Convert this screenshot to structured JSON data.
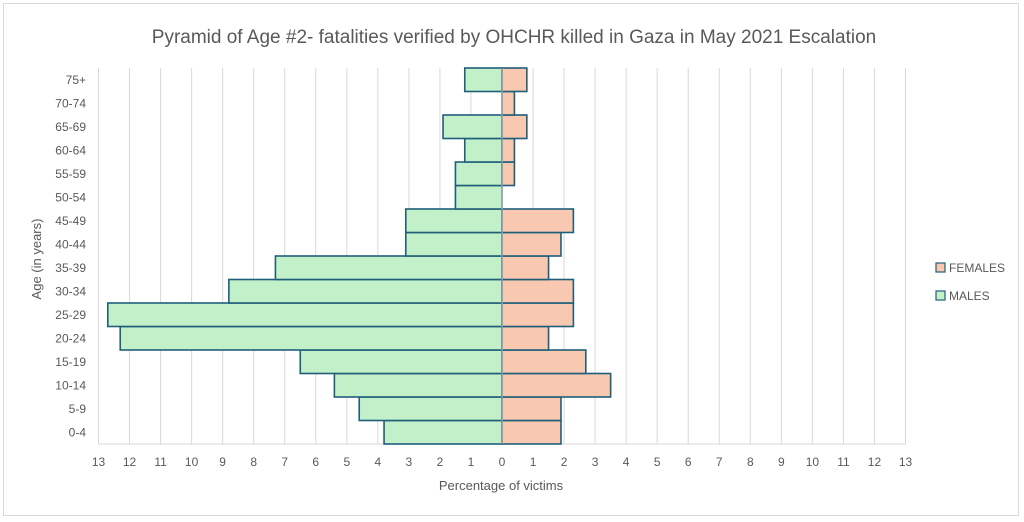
{
  "chart_data": {
    "type": "bar",
    "orientation": "horizontal",
    "title": "Pyramid of Age #2- fatalities verified by OHCHR killed in Gaza in May 2021 Escalation",
    "xlabel": "Percentage of victims",
    "ylabel": "Age (in years)",
    "xlim": [
      -13,
      13
    ],
    "x_ticks": [
      "13",
      "12",
      "11",
      "10",
      "9",
      "8",
      "7",
      "6",
      "5",
      "4",
      "3",
      "2",
      "1",
      "0",
      "1",
      "2",
      "3",
      "4",
      "5",
      "6",
      "7",
      "8",
      "9",
      "10",
      "11",
      "12",
      "13"
    ],
    "grid": true,
    "legend_position": "right",
    "categories": [
      "0-4",
      "5-9",
      "10-14",
      "15-19",
      "20-24",
      "25-29",
      "30-34",
      "35-39",
      "40-44",
      "45-49",
      "50-54",
      "55-59",
      "60-64",
      "65-69",
      "70-74",
      "75+"
    ],
    "series": [
      {
        "name": "FEMALES",
        "color": "#f8c8b0",
        "values": [
          1.9,
          1.9,
          3.5,
          2.7,
          1.5,
          2.3,
          2.3,
          1.5,
          1.9,
          2.3,
          0,
          0.4,
          0.4,
          0.8,
          0.4,
          0.8
        ]
      },
      {
        "name": "MALES",
        "color": "#c2f0c8",
        "values": [
          3.8,
          4.6,
          5.4,
          6.5,
          12.3,
          12.7,
          8.8,
          7.3,
          3.1,
          3.1,
          1.5,
          1.5,
          1.2,
          1.9,
          0,
          1.2
        ]
      }
    ],
    "bar_outline_color": "#1f5f7a"
  }
}
